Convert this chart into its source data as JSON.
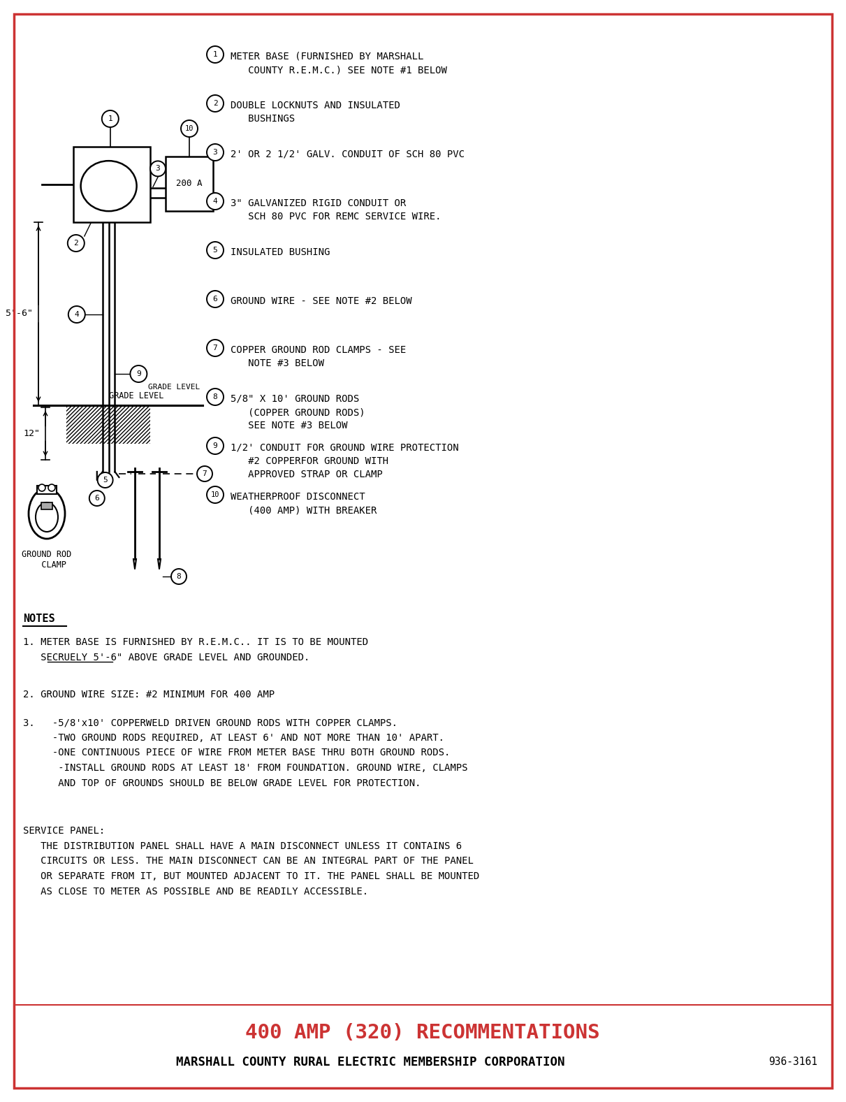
{
  "bg_color": "#FFFFFF",
  "border_color": "#CC3333",
  "title": "400 AMP (320) RECOMMENTATIONS",
  "subtitle": "MARSHALL COUNTY RURAL ELECTRIC MEMBERSHIP CORPORATION",
  "doc_number": "936-3161",
  "title_color": "#CC3333",
  "subtitle_color": "#000000",
  "legend_items": [
    {
      "num": "1",
      "text": "METER BASE (FURNISHED BY MARSHALL\n   COUNTY R.E.M.C.) SEE NOTE #1 BELOW"
    },
    {
      "num": "2",
      "text": "DOUBLE LOCKNUTS AND INSULATED\n   BUSHINGS"
    },
    {
      "num": "3",
      "text": "2' OR 2 1/2' GALV. CONDUIT OF SCH 80 PVC"
    },
    {
      "num": "4",
      "text": "3\" GALVANIZED RIGID CONDUIT OR\n   SCH 80 PVC FOR REMC SERVICE WIRE."
    },
    {
      "num": "5",
      "text": "INSULATED BUSHING"
    },
    {
      "num": "6",
      "text": "GROUND WIRE - SEE NOTE #2 BELOW"
    },
    {
      "num": "7",
      "text": "COPPER GROUND ROD CLAMPS - SEE\n   NOTE #3 BELOW"
    },
    {
      "num": "8",
      "text": "5/8\" X 10' GROUND RODS\n   (COPPER GROUND RODS)\n   SEE NOTE #3 BELOW"
    },
    {
      "num": "9",
      "text": "1/2' CONDUIT FOR GROUND WIRE PROTECTION\n   #2 COPPERFOR GROUND WITH\n   APPROVED STRAP OR CLAMP"
    },
    {
      "num": "10",
      "text": "WEATHERPROOF DISCONNECT\n   (400 AMP) WITH BREAKER"
    }
  ],
  "notes_title": "NOTES",
  "note1": "1. METER BASE IS FURNISHED BY R.E.M.C.. IT IS TO BE MOUNTED\n   SECRUELY 5'-6\" ABOVE GRADE LEVEL AND GROUNDED.",
  "note2": "2. GROUND WIRE SIZE: #2 MINIMUM FOR 400 AMP",
  "note3": "3.   -5/8'x10' COPPERWELD DRIVEN GROUND RODS WITH COPPER CLAMPS.\n     -TWO GROUND RODS REQUIRED, AT LEAST 6' AND NOT MORE THAN 10' APART.\n     -ONE CONTINUOUS PIECE OF WIRE FROM METER BASE THRU BOTH GROUND RODS.\n      -INSTALL GROUND RODS AT LEAST 18' FROM FOUNDATION. GROUND WIRE, CLAMPS\n      AND TOP OF GROUNDS SHOULD BE BELOW GRADE LEVEL FOR PROTECTION.",
  "service_panel": "SERVICE PANEL:\n   THE DISTRIBUTION PANEL SHALL HAVE A MAIN DISCONNECT UNLESS IT CONTAINS 6\n   CIRCUITS OR LESS. THE MAIN DISCONNECT CAN BE AN INTEGRAL PART OF THE PANEL\n   OR SEPARATE FROM IT, BUT MOUNTED ADJACENT TO IT. THE PANEL SHALL BE MOUNTED\n   AS CLOSE TO METER AS POSSIBLE AND BE READILY ACCESSIBLE."
}
